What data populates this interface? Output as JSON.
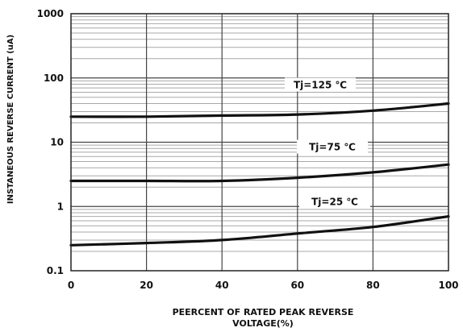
{
  "chart_data": {
    "type": "line",
    "title": "",
    "xlabel_line1": "PEERCENT OF RATED PEAK REVERSE",
    "xlabel_line2": "VOLTAGE(%)",
    "ylabel": "INSTANEOUS REVERSE CURRENT (uA)",
    "xlim": [
      0,
      100
    ],
    "ylim": [
      0.1,
      1000
    ],
    "y_scale": "log",
    "x_ticks": [
      "0",
      "20",
      "40",
      "60",
      "80",
      "100"
    ],
    "y_ticks": [
      "0.1",
      "1",
      "10",
      "100",
      "1000"
    ],
    "grid": true,
    "series": [
      {
        "name": "Tj=125 ℃",
        "x": [
          0,
          20,
          40,
          60,
          80,
          100
        ],
        "y": [
          25,
          25,
          26,
          27,
          31,
          40
        ]
      },
      {
        "name": "Tj=75 ℃",
        "x": [
          0,
          20,
          40,
          60,
          80,
          100
        ],
        "y": [
          2.5,
          2.5,
          2.5,
          2.8,
          3.4,
          4.5
        ]
      },
      {
        "name": "Tj=25 ℃",
        "x": [
          0,
          20,
          40,
          60,
          80,
          100
        ],
        "y": [
          0.25,
          0.27,
          0.3,
          0.38,
          0.48,
          0.7
        ]
      }
    ]
  }
}
